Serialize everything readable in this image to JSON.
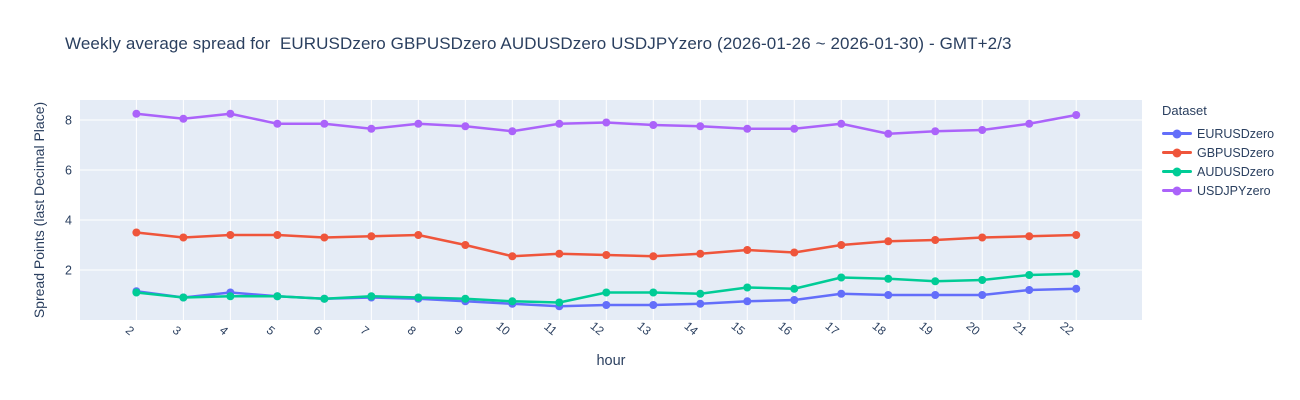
{
  "header": {
    "title": "Weekly average spread for  EURUSDzero GBPUSDzero AUDUSDzero USDJPYzero (2026-01-26 ~ 2026-01-30) - GMT+2/3"
  },
  "legend": {
    "title": "Dataset",
    "position": "right"
  },
  "chart_data": {
    "type": "line",
    "title": "Weekly average spread for  EURUSDzero GBPUSDzero AUDUSDzero USDJPYzero (2026-01-26 ~ 2026-01-30) - GMT+2/3",
    "xlabel": "hour",
    "ylabel": "Spread Points (last Decimal Place)",
    "x": [
      2,
      3,
      4,
      5,
      6,
      7,
      8,
      9,
      10,
      11,
      12,
      13,
      14,
      15,
      16,
      17,
      18,
      19,
      20,
      21,
      22
    ],
    "xlim": [
      0.8,
      23.4
    ],
    "ylim": [
      0,
      8.8
    ],
    "yticks": [
      2,
      4,
      6,
      8
    ],
    "grid": true,
    "legend_position": "right",
    "plot_bgcolor": "#e5ecf6",
    "grid_color": "#ffffff",
    "text_color": "#2a3f5f",
    "series": [
      {
        "name": "EURUSDzero",
        "color": "#636efa",
        "values": [
          1.15,
          0.9,
          1.1,
          0.95,
          0.85,
          0.9,
          0.85,
          0.75,
          0.65,
          0.55,
          0.6,
          0.6,
          0.65,
          0.75,
          0.8,
          1.05,
          1.0,
          1.0,
          1.0,
          1.2,
          1.25
        ]
      },
      {
        "name": "GBPUSDzero",
        "color": "#ef553b",
        "values": [
          3.5,
          3.3,
          3.4,
          3.4,
          3.3,
          3.35,
          3.4,
          3.0,
          2.55,
          2.65,
          2.6,
          2.55,
          2.65,
          2.8,
          2.7,
          3.0,
          3.15,
          3.2,
          3.3,
          3.35,
          3.4
        ]
      },
      {
        "name": "AUDUSDzero",
        "color": "#00cc96",
        "values": [
          1.1,
          0.9,
          0.95,
          0.95,
          0.85,
          0.95,
          0.9,
          0.85,
          0.75,
          0.7,
          1.1,
          1.1,
          1.05,
          1.3,
          1.25,
          1.7,
          1.65,
          1.55,
          1.6,
          1.8,
          1.85
        ]
      },
      {
        "name": "USDJPYzero",
        "color": "#ab63fa",
        "values": [
          8.25,
          8.05,
          8.25,
          7.85,
          7.85,
          7.65,
          7.85,
          7.75,
          7.55,
          7.85,
          7.9,
          7.8,
          7.75,
          7.65,
          7.65,
          7.85,
          7.45,
          7.55,
          7.6,
          7.85,
          8.2
        ]
      }
    ]
  }
}
